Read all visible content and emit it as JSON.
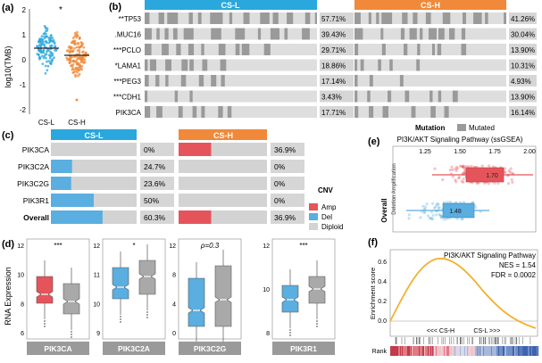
{
  "colors": {
    "csl": "#2aa7dc",
    "csh": "#f0893a",
    "amp": "#e5545a",
    "del": "#5aaee0",
    "diploid": "#d3d3d3",
    "mutated": "#9a9a9a",
    "box_grey": "#a9a9a9",
    "gsea_line": "#f2b130"
  },
  "panel_a": {
    "label": "(a)",
    "ylabel": "log10(TMB)",
    "sig": "*",
    "yticks": [
      "2",
      "1",
      "0",
      "-1",
      "-2"
    ],
    "groups": [
      "CS-L",
      "CS-H"
    ]
  },
  "panel_b": {
    "label": "(b)",
    "header_left": "CS-L",
    "header_right": "CS-H",
    "rows": [
      {
        "gene": "**TP53",
        "pct_l": "57.71%",
        "pct_h": "41.26%"
      },
      {
        "gene": ".MUC16",
        "pct_l": "39.43%",
        "pct_h": "30.04%"
      },
      {
        "gene": "***PCLO",
        "pct_l": "29.71%",
        "pct_h": "13.90%"
      },
      {
        "gene": "*LAMA1",
        "pct_l": "18.86%",
        "pct_h": "10.31%"
      },
      {
        "gene": "***PEG3",
        "pct_l": "17.14%",
        "pct_h": "4.93%"
      },
      {
        "gene": "***CDH1",
        "pct_l": "3.43%",
        "pct_h": "13.90%"
      },
      {
        "gene": "PIK3CA",
        "pct_l": "17.71%",
        "pct_h": "16.14%"
      }
    ],
    "legend_title": "Mutation",
    "legend_item": "Mutated"
  },
  "panel_c": {
    "label": "(c)",
    "header_left": "CS-L",
    "header_right": "CS-H",
    "rows": [
      {
        "gene": "PIK3CA",
        "pct_l": "0%",
        "pct_h": "36.9%"
      },
      {
        "gene": "PIK3C2A",
        "pct_l": "24.7%",
        "pct_h": "0%"
      },
      {
        "gene": "PIK3C2G",
        "pct_l": "23.6%",
        "pct_h": "0%"
      },
      {
        "gene": "PIK3R1",
        "pct_l": "50%",
        "pct_h": "0%"
      },
      {
        "gene": "Overall",
        "pct_l": "60.3%",
        "pct_h": "36.9%"
      }
    ],
    "legend_title": "CNV",
    "legend_items": [
      "Amp",
      "Del",
      "Diploid"
    ]
  },
  "panel_d": {
    "label": "(d)",
    "ylabel": "RNA Expression",
    "panels": [
      {
        "gene": "PIK3CA",
        "sig": "***",
        "yticks": [
          "12",
          "10",
          "8",
          "6"
        ]
      },
      {
        "gene": "PIK3C2A",
        "sig": "*",
        "yticks": [
          "12",
          "11",
          "10",
          "9"
        ]
      },
      {
        "gene": "PIK3C2G",
        "sig": "ρ=0.3",
        "yticks": [
          "12",
          "8",
          "4",
          "0"
        ]
      },
      {
        "gene": "PIK3R1",
        "sig": "***",
        "yticks": [
          "12",
          "10",
          "8"
        ]
      }
    ]
  },
  "panel_e": {
    "label": "(e)",
    "title": "PI3K/AKT Signaling Pathway (ssGSEA)",
    "xticks": [
      "1.25",
      "1.50",
      "1.75",
      "2.00"
    ],
    "ylabel_main": "Overall",
    "ylabel_sub": "Deletion  Amplification",
    "amp_value": "1.70",
    "del_value": "1.48",
    "sig": "***"
  },
  "panel_f": {
    "label": "(f)",
    "title": "PI3K/AKT Signaling Pathway",
    "nes": "NES = 1.54",
    "fdr": "FDR = 0.0002",
    "ylabel": "Enrichment score",
    "yticks": [
      "0.6",
      "0.4",
      "0.2",
      "0.0"
    ],
    "axis_note": "<<< CS-H           CS-L >>>",
    "rank_label": "Rank"
  }
}
